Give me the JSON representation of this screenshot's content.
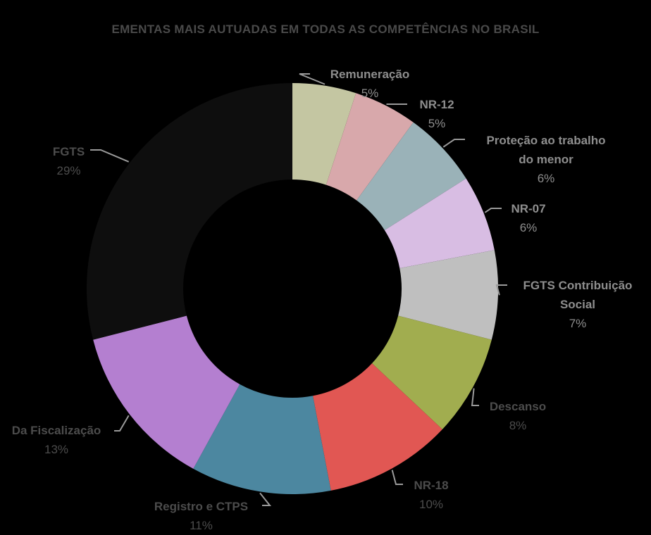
{
  "chart_data": {
    "type": "pie",
    "subtype": "donut",
    "title": "EMENTAS MAIS AUTUADAS EM TODAS AS COMPETÊNCIAS NO BRASIL",
    "categories": [
      "Remuneração",
      "NR-12",
      "Proteção ao trabalho do menor",
      "NR-07",
      "FGTS Contribuição Social",
      "Descanso",
      "NR-18",
      "Registro e CTPS",
      "Da Fiscalização",
      "FGTS"
    ],
    "values": [
      5,
      5,
      6,
      6,
      7,
      8,
      10,
      11,
      13,
      29
    ],
    "labels": [
      "5%",
      "5%",
      "6%",
      "6%",
      "7%",
      "8%",
      "10%",
      "11%",
      "13%",
      "29%"
    ],
    "colors": [
      "#c4c6a2",
      "#d8a8ab",
      "#9ab2b8",
      "#d8bde3",
      "#bfbfbf",
      "#a1ad4f",
      "#e15753",
      "#4c87a0",
      "#b47fd0",
      "#0e0e0e"
    ],
    "legend_position": "data-labels",
    "start_angle": "12 o'clock, clockwise"
  },
  "title": "EMENTAS MAIS AUTUADAS EM TODAS AS COMPETÊNCIAS NO BRASIL",
  "labels": [
    {
      "name": "Remuneração",
      "pct": "5%"
    },
    {
      "name": "NR-12",
      "pct": "5%"
    },
    {
      "name": "Proteção ao trabalho",
      "name2": "do menor",
      "pct": "6%"
    },
    {
      "name": "NR-07",
      "pct": "6%"
    },
    {
      "name": "FGTS Contribuição",
      "name2": "Social",
      "pct": "7%"
    },
    {
      "name": "Descanso",
      "pct": "8%"
    },
    {
      "name": "NR-18",
      "pct": "10%"
    },
    {
      "name": "Registro e CTPS",
      "pct": "11%"
    },
    {
      "name": "Da Fiscalização",
      "pct": "13%"
    },
    {
      "name": "FGTS",
      "pct": "29%"
    }
  ]
}
